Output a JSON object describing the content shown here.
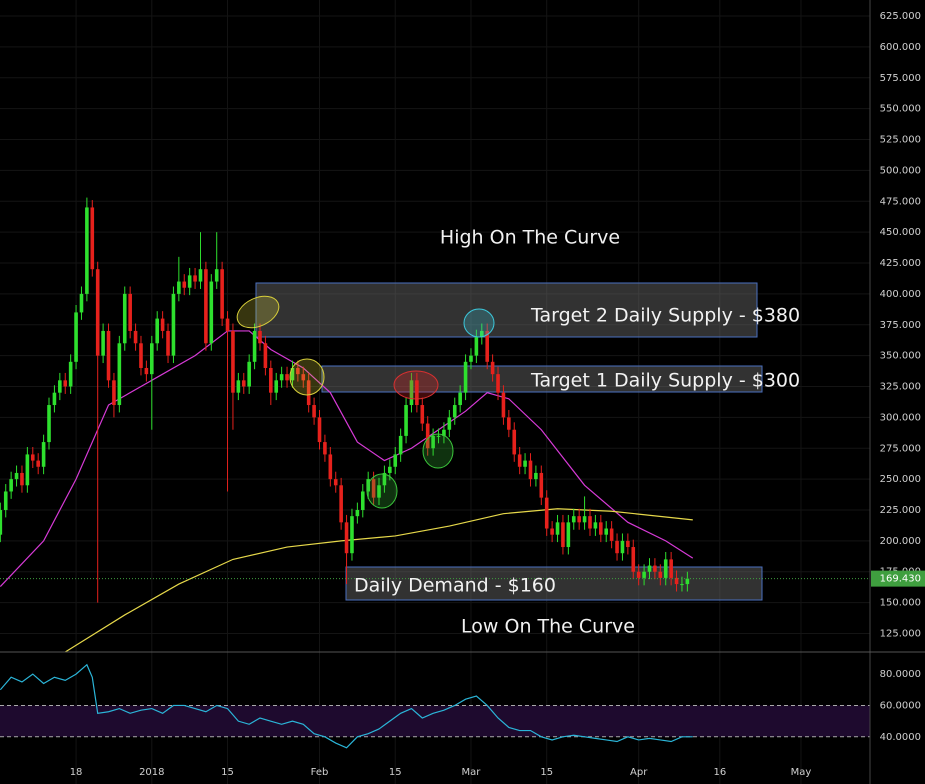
{
  "chart_data": {
    "type": "candlestick",
    "up_color": "#2ee02e",
    "down_color": "#e6211c",
    "grid": true,
    "grid_color": "#141414",
    "xlim": [
      -28.06,
      132.76
    ],
    "ylim": [
      110,
      638
    ],
    "xticks": [
      {
        "value": -14,
        "label": "18"
      },
      {
        "value": 0,
        "label": "2018"
      },
      {
        "value": 14,
        "label": "15"
      },
      {
        "value": 31,
        "label": "Feb"
      },
      {
        "value": 45,
        "label": "15"
      },
      {
        "value": 59,
        "label": "Mar"
      },
      {
        "value": 73,
        "label": "15"
      },
      {
        "value": 90,
        "label": "Apr"
      },
      {
        "value": 105,
        "label": "16"
      },
      {
        "value": 120,
        "label": "May"
      }
    ],
    "yticks": [
      {
        "value": 125,
        "label": "125.000"
      },
      {
        "value": 150,
        "label": "150.000"
      },
      {
        "value": 175,
        "label": "175.000"
      },
      {
        "value": 200,
        "label": "200.000"
      },
      {
        "value": 225,
        "label": "225.000"
      },
      {
        "value": 250,
        "label": "250.000"
      },
      {
        "value": 275,
        "label": "275.000"
      },
      {
        "value": 300,
        "label": "300.000"
      },
      {
        "value": 325,
        "label": "325.000"
      },
      {
        "value": 350,
        "label": "350.000"
      },
      {
        "value": 375,
        "label": "375.000"
      },
      {
        "value": 400,
        "label": "400.000"
      },
      {
        "value": 425,
        "label": "425.000"
      },
      {
        "value": 450,
        "label": "450.000"
      },
      {
        "value": 475,
        "label": "475.000"
      },
      {
        "value": 500,
        "label": "500.000"
      },
      {
        "value": 525,
        "label": "525.000"
      },
      {
        "value": 550,
        "label": "550.000"
      },
      {
        "value": 575,
        "label": "575.000"
      },
      {
        "value": 600,
        "label": "600.000"
      },
      {
        "value": 625,
        "label": "625.000"
      }
    ],
    "x": [
      -28,
      -27,
      -26,
      -25,
      -24,
      -23,
      -22,
      -21,
      -20,
      -19,
      -18,
      -17,
      -16,
      -15,
      -14,
      -13,
      -12,
      -11,
      -10,
      -9,
      -8,
      -7,
      -6,
      -5,
      -4,
      -3,
      -2,
      -1,
      0,
      1,
      2,
      3,
      4,
      5,
      6,
      7,
      8,
      9,
      10,
      11,
      12,
      13,
      14,
      15,
      16,
      17,
      18,
      19,
      20,
      21,
      22,
      23,
      24,
      25,
      26,
      27,
      28,
      29,
      30,
      31,
      32,
      33,
      34,
      35,
      36,
      37,
      38,
      39,
      40,
      41,
      42,
      43,
      44,
      45,
      46,
      47,
      48,
      49,
      50,
      51,
      52,
      53,
      54,
      55,
      56,
      57,
      58,
      59,
      60,
      61,
      62,
      63,
      64,
      65,
      66,
      67,
      68,
      69,
      70,
      71,
      72,
      73,
      74,
      75,
      76,
      77,
      78,
      79,
      80,
      81,
      82,
      83,
      84,
      85,
      86,
      87,
      88,
      89,
      90,
      91,
      92,
      93,
      94,
      95,
      96,
      97,
      98,
      99
    ],
    "open": [
      205,
      225,
      240,
      250,
      255,
      245,
      270,
      265,
      260,
      280,
      310,
      320,
      330,
      325,
      345,
      385,
      400,
      470,
      420,
      350,
      370,
      330,
      310,
      360,
      400,
      370,
      360,
      340,
      335,
      360,
      380,
      370,
      350,
      400,
      410,
      405,
      415,
      410,
      420,
      360,
      410,
      420,
      380,
      370,
      320,
      330,
      325,
      345,
      370,
      360,
      340,
      320,
      330,
      335,
      330,
      340,
      335,
      330,
      310,
      300,
      280,
      270,
      250,
      245,
      215,
      190,
      220,
      225,
      240,
      250,
      235,
      245,
      255,
      260,
      270,
      285,
      310,
      330,
      310,
      295,
      275,
      285,
      285,
      290,
      300,
      310,
      320,
      345,
      350,
      365,
      370,
      345,
      335,
      320,
      300,
      290,
      270,
      260,
      265,
      250,
      255,
      235,
      210,
      205,
      215,
      195,
      215,
      220,
      215,
      220,
      210,
      215,
      205,
      210,
      200,
      190,
      200,
      195,
      175,
      170,
      175,
      180,
      175,
      170,
      185,
      170,
      165,
      165
    ],
    "high": [
      231,
      246,
      256,
      261,
      261,
      276,
      276,
      271,
      286,
      316,
      326,
      336,
      336,
      351,
      391,
      406,
      478,
      476,
      426,
      376,
      376,
      336,
      366,
      406,
      406,
      376,
      366,
      346,
      366,
      386,
      386,
      376,
      406,
      430,
      416,
      421,
      421,
      450,
      426,
      416,
      450,
      426,
      386,
      376,
      336,
      336,
      351,
      376,
      376,
      366,
      346,
      336,
      341,
      341,
      346,
      346,
      341,
      336,
      316,
      306,
      286,
      276,
      256,
      251,
      221,
      226,
      231,
      246,
      256,
      256,
      251,
      261,
      266,
      276,
      291,
      316,
      336,
      336,
      316,
      301,
      291,
      291,
      296,
      306,
      316,
      326,
      351,
      356,
      371,
      376,
      376,
      351,
      341,
      326,
      306,
      296,
      276,
      271,
      271,
      261,
      261,
      241,
      216,
      221,
      221,
      221,
      226,
      226,
      236,
      226,
      221,
      221,
      216,
      216,
      206,
      206,
      206,
      201,
      181,
      181,
      186,
      186,
      181,
      191,
      191,
      176,
      171,
      175
    ],
    "low": [
      199,
      219,
      234,
      244,
      239,
      239,
      259,
      254,
      254,
      274,
      304,
      314,
      319,
      319,
      339,
      379,
      394,
      414,
      150,
      344,
      324,
      300,
      304,
      354,
      364,
      354,
      334,
      329,
      290,
      354,
      364,
      344,
      344,
      394,
      399,
      399,
      404,
      404,
      354,
      354,
      404,
      374,
      240,
      290,
      314,
      319,
      319,
      339,
      354,
      334,
      310,
      314,
      324,
      324,
      324,
      329,
      324,
      304,
      294,
      274,
      264,
      244,
      239,
      209,
      165,
      184,
      214,
      219,
      234,
      229,
      229,
      239,
      249,
      254,
      264,
      279,
      304,
      304,
      289,
      269,
      269,
      279,
      279,
      284,
      294,
      304,
      314,
      339,
      344,
      359,
      339,
      329,
      314,
      294,
      284,
      264,
      254,
      254,
      244,
      244,
      229,
      204,
      199,
      199,
      189,
      189,
      209,
      209,
      209,
      204,
      204,
      199,
      199,
      194,
      184,
      184,
      189,
      169,
      164,
      164,
      169,
      169,
      164,
      164,
      164,
      159,
      159,
      159
    ],
    "close": [
      225,
      240,
      250,
      255,
      245,
      270,
      265,
      260,
      280,
      310,
      320,
      330,
      325,
      345,
      385,
      400,
      470,
      420,
      350,
      370,
      330,
      310,
      360,
      400,
      370,
      360,
      340,
      335,
      360,
      380,
      370,
      350,
      400,
      410,
      405,
      415,
      410,
      420,
      360,
      410,
      420,
      380,
      370,
      320,
      330,
      325,
      345,
      370,
      360,
      340,
      320,
      330,
      335,
      330,
      340,
      335,
      330,
      310,
      300,
      280,
      270,
      250,
      245,
      215,
      190,
      220,
      225,
      240,
      250,
      235,
      245,
      255,
      260,
      270,
      285,
      310,
      330,
      310,
      295,
      275,
      285,
      285,
      290,
      300,
      310,
      320,
      345,
      350,
      365,
      370,
      345,
      335,
      320,
      300,
      290,
      270,
      260,
      265,
      250,
      255,
      235,
      210,
      205,
      215,
      195,
      215,
      220,
      215,
      220,
      210,
      215,
      205,
      210,
      200,
      190,
      200,
      195,
      175,
      170,
      175,
      180,
      175,
      170,
      185,
      170,
      165,
      165,
      169.43
    ],
    "last_price": {
      "value": 169.43,
      "label": "169.430",
      "color": "#3f9f3f"
    },
    "lines": [
      {
        "color": "#d63ad6",
        "x": [
          -28,
          -20,
          -14,
          -8,
          0,
          8,
          14,
          18,
          22,
          28,
          33,
          38,
          43,
          48,
          53,
          58,
          62,
          66,
          72,
          80,
          88,
          95,
          100
        ],
        "values": [
          163,
          200,
          250,
          310,
          330,
          350,
          370,
          370,
          355,
          340,
          320,
          280,
          265,
          275,
          290,
          305,
          320,
          315,
          290,
          245,
          215,
          200,
          186
        ]
      },
      {
        "color": "#e6d84a",
        "x": [
          -16,
          -5,
          5,
          15,
          25,
          35,
          45,
          55,
          65,
          75,
          85,
          100
        ],
        "values": [
          110,
          140,
          165,
          185,
          195,
          200,
          204,
          212,
          222,
          226,
          224,
          217
        ]
      }
    ],
    "annotations": [
      "High On The Curve",
      "Target 2 Daily Supply - $380",
      "Target 1 Daily Supply - $300",
      "Daily Demand - $160",
      "Low On The Curve"
    ],
    "rsi": {
      "color": "#2bb5d8",
      "band_color": "#1e0a2e",
      "ylim": [
        9.9,
        94.1
      ],
      "yticks": [
        {
          "value": 40,
          "label": "40.0000"
        },
        {
          "value": 60,
          "label": "60.0000"
        },
        {
          "value": 80,
          "label": "80.0000"
        }
      ],
      "x": [
        -28,
        -26,
        -24,
        -22,
        -20,
        -18,
        -16,
        -14,
        -12,
        -11,
        -10,
        -8,
        -6,
        -4,
        -2,
        0,
        2,
        4,
        6,
        8,
        10,
        12,
        14,
        16,
        18,
        20,
        22,
        24,
        26,
        28,
        30,
        32,
        34,
        36,
        38,
        40,
        42,
        44,
        46,
        48,
        50,
        52,
        54,
        56,
        58,
        60,
        62,
        64,
        66,
        68,
        70,
        72,
        74,
        76,
        78,
        80,
        82,
        84,
        86,
        88,
        90,
        92,
        94,
        96,
        98,
        100
      ],
      "values": [
        70,
        78,
        75,
        80,
        74,
        78,
        76,
        80,
        86,
        78,
        55,
        56,
        58,
        55,
        57,
        58,
        55,
        60,
        60,
        58,
        56,
        60,
        58,
        50,
        48,
        52,
        50,
        48,
        50,
        48,
        42,
        40,
        36,
        33,
        40,
        42,
        45,
        50,
        55,
        58,
        52,
        55,
        57,
        60,
        64,
        66,
        60,
        52,
        46,
        44,
        44,
        40,
        38,
        40,
        41,
        40,
        39,
        38,
        37,
        40,
        38,
        39,
        38,
        37,
        40,
        40
      ]
    }
  }
}
